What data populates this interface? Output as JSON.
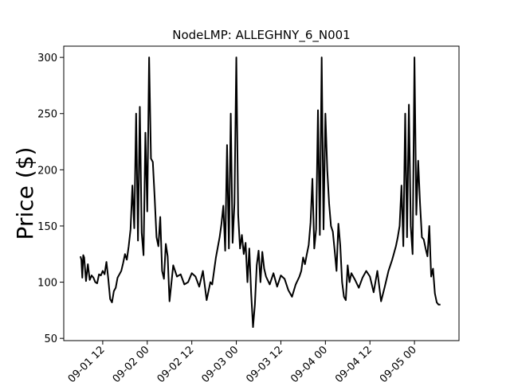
{
  "chart_data": {
    "type": "line",
    "title": "NodeLMP: ALLEGHNY_6_N001",
    "xlabel": "",
    "ylabel": "Price ($)",
    "ylim": [
      48,
      310
    ],
    "xlim": [
      "2016-09-01 01:30",
      "2016-09-05 12:00"
    ],
    "grid": false,
    "line_color": "#000000",
    "yticks": [
      50,
      100,
      150,
      200,
      250,
      300
    ],
    "xticks": [
      {
        "t": "2016-09-01 12:00",
        "label": "09-01 12"
      },
      {
        "t": "2016-09-02 00:00",
        "label": "09-02 00"
      },
      {
        "t": "2016-09-02 12:00",
        "label": "09-02 12"
      },
      {
        "t": "2016-09-03 00:00",
        "label": "09-03 00"
      },
      {
        "t": "2016-09-03 12:00",
        "label": "09-03 12"
      },
      {
        "t": "2016-09-04 00:00",
        "label": "09-04 00"
      },
      {
        "t": "2016-09-04 12:00",
        "label": "09-04 12"
      },
      {
        "t": "2016-09-05 00:00",
        "label": "09-05 00"
      }
    ],
    "series": [
      {
        "x": [
          "2016-09-01 06:00",
          "2016-09-01 06:15",
          "2016-09-01 06:30",
          "2016-09-01 06:45",
          "2016-09-01 07:00",
          "2016-09-01 07:30",
          "2016-09-01 08:00",
          "2016-09-01 08:30",
          "2016-09-01 09:00",
          "2016-09-01 09:30",
          "2016-09-01 10:00",
          "2016-09-01 10:30",
          "2016-09-01 11:00",
          "2016-09-01 11:30",
          "2016-09-01 12:00",
          "2016-09-01 12:30",
          "2016-09-01 13:00",
          "2016-09-01 13:30",
          "2016-09-01 14:00",
          "2016-09-01 14:30",
          "2016-09-01 15:00",
          "2016-09-01 15:30",
          "2016-09-01 16:00",
          "2016-09-01 16:30",
          "2016-09-01 17:00",
          "2016-09-01 17:30",
          "2016-09-01 18:00",
          "2016-09-01 18:30",
          "2016-09-01 19:00",
          "2016-09-01 19:30",
          "2016-09-01 20:00",
          "2016-09-01 20:30",
          "2016-09-01 21:00",
          "2016-09-01 21:30",
          "2016-09-01 22:00",
          "2016-09-01 22:30",
          "2016-09-01 23:00",
          "2016-09-01 23:30",
          "2016-09-02 00:00",
          "2016-09-02 00:30",
          "2016-09-02 01:00",
          "2016-09-02 01:30",
          "2016-09-02 02:00",
          "2016-09-02 02:30",
          "2016-09-02 03:00",
          "2016-09-02 03:30",
          "2016-09-02 04:00",
          "2016-09-02 04:30",
          "2016-09-02 05:00",
          "2016-09-02 05:30",
          "2016-09-02 06:00",
          "2016-09-02 07:00",
          "2016-09-02 08:00",
          "2016-09-02 09:00",
          "2016-09-02 10:00",
          "2016-09-02 11:00",
          "2016-09-02 12:00",
          "2016-09-02 13:00",
          "2016-09-02 14:00",
          "2016-09-02 15:00",
          "2016-09-02 16:00",
          "2016-09-02 17:00",
          "2016-09-02 17:30",
          "2016-09-02 18:00",
          "2016-09-02 18:30",
          "2016-09-02 19:00",
          "2016-09-02 19:30",
          "2016-09-02 20:00",
          "2016-09-02 20:30",
          "2016-09-02 21:00",
          "2016-09-02 21:30",
          "2016-09-02 22:00",
          "2016-09-02 22:30",
          "2016-09-02 23:00",
          "2016-09-02 23:30",
          "2016-09-03 00:00",
          "2016-09-03 00:30",
          "2016-09-03 01:00",
          "2016-09-03 01:30",
          "2016-09-03 02:00",
          "2016-09-03 02:30",
          "2016-09-03 03:00",
          "2016-09-03 03:30",
          "2016-09-03 04:00",
          "2016-09-03 04:30",
          "2016-09-03 05:00",
          "2016-09-03 05:30",
          "2016-09-03 06:00",
          "2016-09-03 06:30",
          "2016-09-03 07:00",
          "2016-09-03 07:30",
          "2016-09-03 08:00",
          "2016-09-03 09:00",
          "2016-09-03 10:00",
          "2016-09-03 11:00",
          "2016-09-03 12:00",
          "2016-09-03 13:00",
          "2016-09-03 14:00",
          "2016-09-03 15:00",
          "2016-09-03 16:00",
          "2016-09-03 17:00",
          "2016-09-03 17:30",
          "2016-09-03 18:00",
          "2016-09-03 18:30",
          "2016-09-03 19:00",
          "2016-09-03 19:30",
          "2016-09-03 20:00",
          "2016-09-03 20:30",
          "2016-09-03 21:00",
          "2016-09-03 21:30",
          "2016-09-03 22:00",
          "2016-09-03 22:30",
          "2016-09-03 23:00",
          "2016-09-03 23:30",
          "2016-09-04 00:00",
          "2016-09-04 00:30",
          "2016-09-04 01:00",
          "2016-09-04 01:30",
          "2016-09-04 02:00",
          "2016-09-04 02:30",
          "2016-09-04 03:00",
          "2016-09-04 03:30",
          "2016-09-04 04:00",
          "2016-09-04 04:30",
          "2016-09-04 05:00",
          "2016-09-04 05:30",
          "2016-09-04 06:00",
          "2016-09-04 06:30",
          "2016-09-04 07:00",
          "2016-09-04 08:00",
          "2016-09-04 09:00",
          "2016-09-04 10:00",
          "2016-09-04 11:00",
          "2016-09-04 12:00",
          "2016-09-04 13:00",
          "2016-09-04 14:00",
          "2016-09-04 15:00",
          "2016-09-04 16:00",
          "2016-09-04 17:00",
          "2016-09-04 17:30",
          "2016-09-04 18:00",
          "2016-09-04 18:30",
          "2016-09-04 19:00",
          "2016-09-04 19:30",
          "2016-09-04 20:00",
          "2016-09-04 20:30",
          "2016-09-04 21:00",
          "2016-09-04 21:30",
          "2016-09-04 22:00",
          "2016-09-04 22:30",
          "2016-09-04 23:00",
          "2016-09-04 23:30",
          "2016-09-05 00:00",
          "2016-09-05 00:30",
          "2016-09-05 01:00",
          "2016-09-05 01:30",
          "2016-09-05 02:00",
          "2016-09-05 02:30",
          "2016-09-05 03:00",
          "2016-09-05 03:30",
          "2016-09-05 04:00",
          "2016-09-05 04:30",
          "2016-09-05 05:00",
          "2016-09-05 05:30",
          "2016-09-05 06:00",
          "2016-09-05 06:30",
          "2016-09-05 07:00"
        ],
        "values": [
          123,
          120,
          104,
          124,
          122,
          101,
          116,
          102,
          106,
          104,
          100,
          99,
          107,
          106,
          110,
          107,
          118,
          103,
          85,
          82,
          92,
          95,
          104,
          107,
          110,
          117,
          125,
          120,
          132,
          147,
          186,
          148,
          250,
          137,
          256,
          144,
          124,
          233,
          163,
          300,
          210,
          207,
          175,
          140,
          132,
          158,
          110,
          103,
          134,
          123,
          83,
          115,
          105,
          107,
          98,
          100,
          108,
          105,
          96,
          110,
          84,
          100,
          98,
          110,
          122,
          131,
          140,
          152,
          168,
          128,
          222,
          130,
          250,
          135,
          170,
          300,
          160,
          130,
          142,
          125,
          135,
          100,
          130,
          90,
          60,
          80,
          115,
          128,
          100,
          127,
          112,
          105,
          98,
          108,
          96,
          106,
          103,
          93,
          87,
          98,
          105,
          110,
          122,
          116,
          125,
          133,
          153,
          192,
          130,
          147,
          253,
          142,
          300,
          147,
          250,
          200,
          170,
          150,
          145,
          128,
          110,
          152,
          133,
          100,
          87,
          84,
          115,
          100,
          108,
          102,
          95,
          104,
          110,
          105,
          91,
          110,
          83,
          96,
          110,
          115,
          120,
          126,
          132,
          140,
          150,
          186,
          132,
          250,
          140,
          258,
          150,
          125,
          300,
          160,
          208,
          170,
          140,
          138,
          130,
          123,
          150,
          105,
          112,
          90,
          82,
          80,
          80
        ]
      }
    ]
  }
}
